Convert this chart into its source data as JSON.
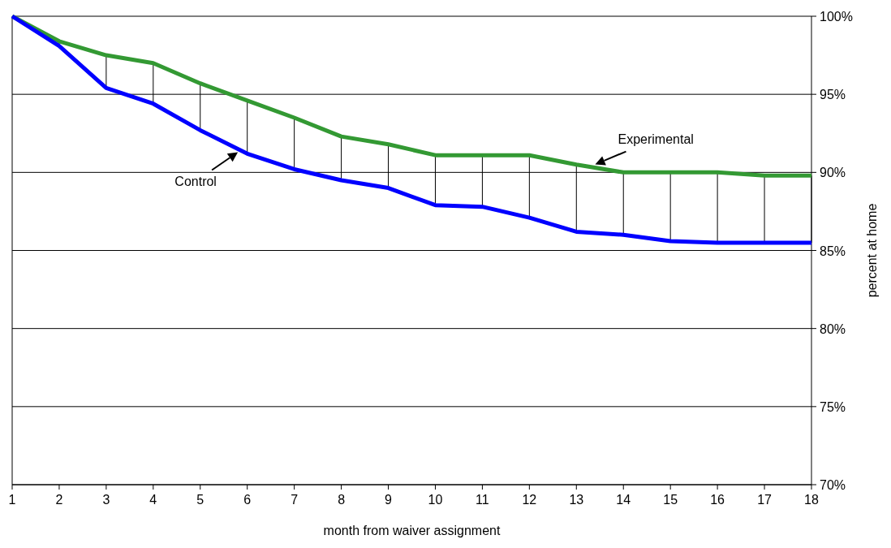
{
  "chart_data": {
    "type": "line",
    "xlabel": "month from waiver assignment",
    "ylabel": "percent at home",
    "x": [
      1,
      2,
      3,
      4,
      5,
      6,
      7,
      8,
      9,
      10,
      11,
      12,
      13,
      14,
      15,
      16,
      17,
      18
    ],
    "series": [
      {
        "name": "Experimental",
        "color": "#339933",
        "values": [
          100,
          98.4,
          97.5,
          97.0,
          95.7,
          94.6,
          93.5,
          92.3,
          91.8,
          91.1,
          91.1,
          91.1,
          90.5,
          90.0,
          90.0,
          90.0,
          89.8,
          89.8
        ]
      },
      {
        "name": "Control",
        "color": "#0000ff",
        "values": [
          100,
          98.1,
          95.4,
          94.4,
          92.7,
          91.2,
          90.2,
          89.5,
          89.0,
          87.9,
          87.8,
          87.1,
          86.2,
          86.0,
          85.6,
          85.5,
          85.5,
          85.5
        ]
      }
    ],
    "xlim": [
      1,
      18
    ],
    "xticks": [
      1,
      2,
      3,
      4,
      5,
      6,
      7,
      8,
      9,
      10,
      11,
      12,
      13,
      14,
      15,
      16,
      17,
      18
    ],
    "ylim": [
      70,
      100
    ],
    "yticks": [
      {
        "value": 70,
        "label": "70%"
      },
      {
        "value": 75,
        "label": "75%"
      },
      {
        "value": 80,
        "label": "80%"
      },
      {
        "value": 85,
        "label": "85%"
      },
      {
        "value": 90,
        "label": "90%"
      },
      {
        "value": 95,
        "label": "95%"
      },
      {
        "value": 100,
        "label": "100%"
      }
    ],
    "grid": "y",
    "legend": false,
    "marker": "none",
    "line_style": "solid"
  }
}
